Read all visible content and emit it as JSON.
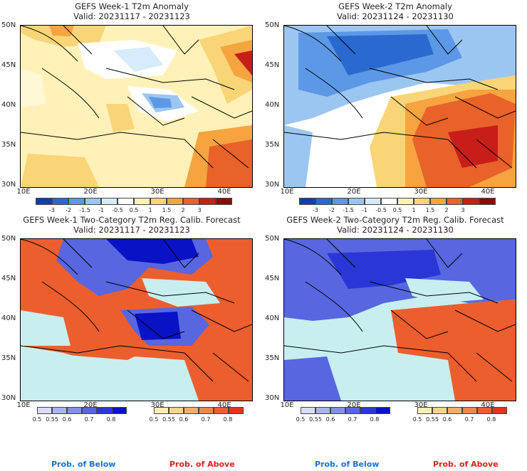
{
  "panels": [
    {
      "title": "GEFS Week-1 T2m Anomaly",
      "valid": "Valid: 20231117 - 20231123"
    },
    {
      "title": "GEFS Week-2 T2m Anomaly",
      "valid": "Valid: 20231124 - 20231130"
    },
    {
      "title": "GEFS Week-1 Two-Category T2m Reg. Calib. Forecast",
      "valid": "Valid: 20231117 - 20231123"
    },
    {
      "title": "GEFS Week-2 Two-Category T2m Reg. Calib. Forecast",
      "valid": "Valid: 20231124 - 20231130"
    }
  ],
  "axes": {
    "lat_labels": [
      "50N",
      "45N",
      "40N",
      "35N",
      "30N"
    ],
    "lon_labels": [
      "10E",
      "20E",
      "30E",
      "40E"
    ]
  },
  "anomaly_scale": {
    "ticks": [
      "-3",
      "-2",
      "-1.5",
      "-1",
      "-0.5",
      "0.5",
      "1",
      "1.5",
      "2",
      "3"
    ],
    "colors": [
      "#0a3fb0",
      "#2a6ad0",
      "#5c98e6",
      "#9cc6f2",
      "#d6ebfb",
      "#ffffff",
      "#fff1b8",
      "#f9d577",
      "#f5a43f",
      "#e8622a",
      "#c81e1a",
      "#8c0a0a"
    ]
  },
  "prob_scale": {
    "ticks": [
      "0.5",
      "0.55",
      "0.6",
      "0.7",
      "0.8"
    ],
    "below_colors": [
      "#d8dcf8",
      "#aab4f2",
      "#8290ea",
      "#5866e0",
      "#2a36d6",
      "#0a12c6"
    ],
    "above_colors": [
      "#fdeeb6",
      "#fbd48a",
      "#f7ad6a",
      "#f2874a",
      "#ec5e2e",
      "#e2351a"
    ],
    "below_label": "Prob. of Below",
    "above_label": "Prob. of Above",
    "below_label_color": "#1a6fd8",
    "above_label_color": "#e21d1d"
  }
}
